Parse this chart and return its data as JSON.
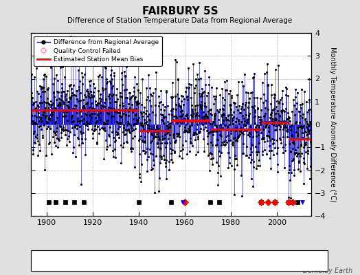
{
  "title": "FAIRBURY 5S",
  "subtitle": "Difference of Station Temperature Data from Regional Average",
  "ylabel": "Monthly Temperature Anomaly Difference (°C)",
  "ylim": [
    -4,
    4
  ],
  "yticks": [
    -4,
    -3,
    -2,
    -1,
    0,
    1,
    2,
    3,
    4
  ],
  "xlim": [
    1893,
    2015
  ],
  "xticks": [
    1900,
    1920,
    1940,
    1960,
    1980,
    2000
  ],
  "background_color": "#e0e0e0",
  "plot_bg_color": "#ffffff",
  "grid_color": "#bbbbbb",
  "line_color": "#0000cc",
  "dot_color": "#000000",
  "qc_color": "#ff69b4",
  "bias_color": "#ff0000",
  "watermark": "Berkeley Earth",
  "station_move_years": [
    1960,
    1993,
    1996,
    1999,
    2005,
    2007
  ],
  "record_gap_years": [],
  "tobs_change_years": [
    1959,
    2011
  ],
  "empirical_break_years": [
    1901,
    1904,
    1908,
    1912,
    1916,
    1940,
    1954,
    1971,
    1975,
    1993,
    1999,
    2005,
    2009
  ],
  "segment_means": [
    {
      "start": 1893,
      "end": 1940,
      "mean": 0.62
    },
    {
      "start": 1940,
      "end": 1954,
      "mean": -0.28
    },
    {
      "start": 1954,
      "end": 1971,
      "mean": 0.18
    },
    {
      "start": 1971,
      "end": 1993,
      "mean": -0.22
    },
    {
      "start": 1993,
      "end": 1999,
      "mean": 0.08
    },
    {
      "start": 1999,
      "end": 2005,
      "mean": 0.08
    },
    {
      "start": 2005,
      "end": 2015,
      "mean": -0.62
    }
  ],
  "marker_y_inside": -3.4,
  "random_seed": 42,
  "noise_std": 1.0
}
